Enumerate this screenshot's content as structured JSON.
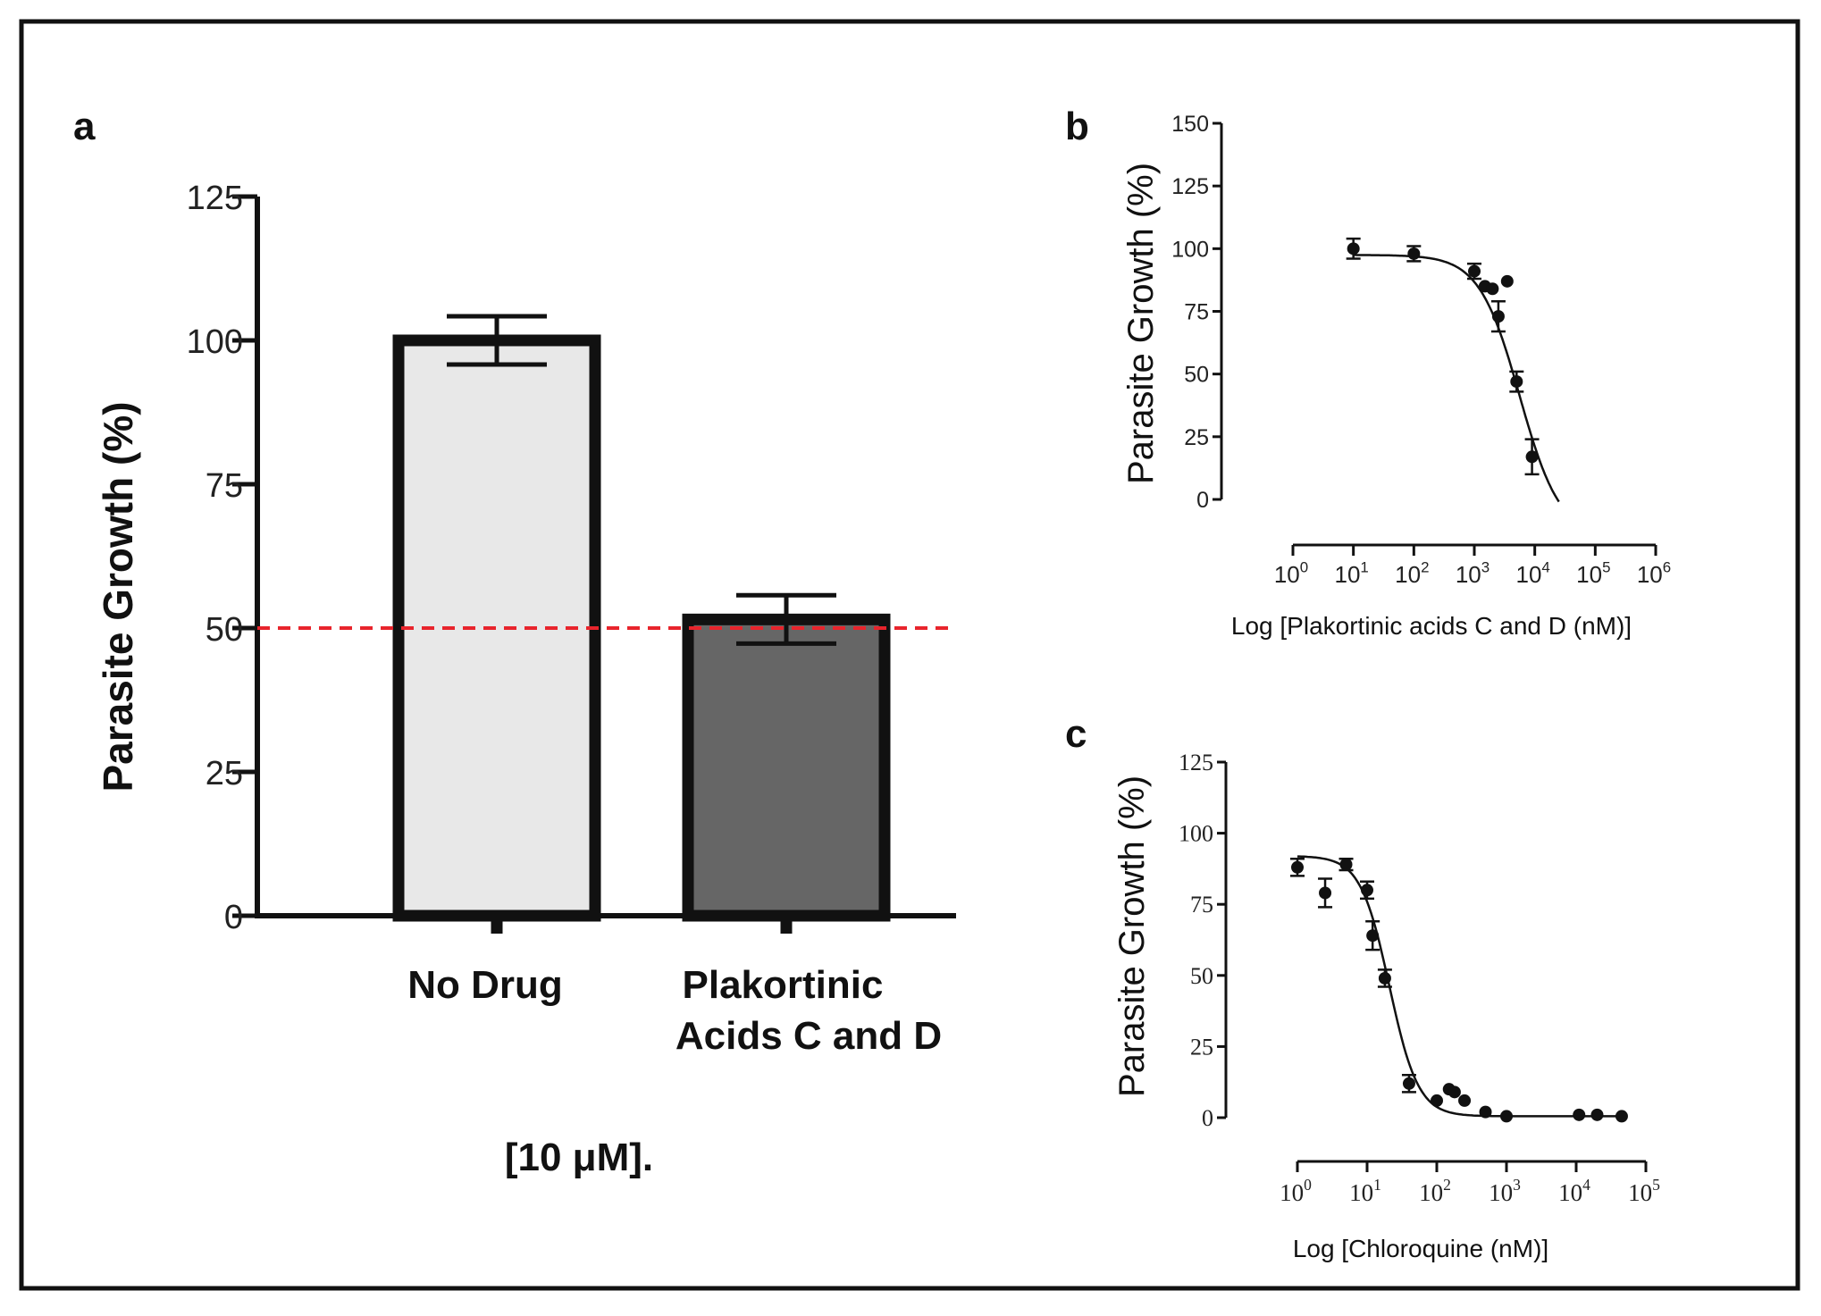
{
  "figure": {
    "panel_labels": [
      "a",
      "b",
      "c"
    ]
  },
  "colors": {
    "frame": "#111111",
    "bar_no_drug": "#e8e8e8",
    "bar_treated": "#666666",
    "threshold_line": "#e8242c",
    "ink": "#111111"
  },
  "chart_data": [
    {
      "panel": "a",
      "type": "bar",
      "title": "",
      "ylabel": "Parasite Growth (%)",
      "xlabel": "[10 μM].",
      "ylim": [
        0,
        125
      ],
      "yticks": [
        0,
        25,
        50,
        75,
        100,
        125
      ],
      "categories": [
        {
          "line1": "No Drug",
          "line2": ""
        },
        {
          "line1": "Plakortinic",
          "line2": "Acids C and D"
        }
      ],
      "values": [
        100,
        51.5
      ],
      "errors": [
        4.2,
        4.2
      ],
      "reference_line": {
        "y": 50,
        "style": "dashed"
      }
    },
    {
      "panel": "b",
      "type": "scatter",
      "subtype": "dose-response",
      "ylabel": "Parasite Growth (%)",
      "xlabel": "Log [Plakortinic acids C and D (nM)]",
      "xscale": "log",
      "xlim_exp": [
        0,
        6
      ],
      "xticks": [
        {
          "base": "10",
          "exp": "0"
        },
        {
          "base": "10",
          "exp": "1"
        },
        {
          "base": "10",
          "exp": "2"
        },
        {
          "base": "10",
          "exp": "3"
        },
        {
          "base": "10",
          "exp": "4"
        },
        {
          "base": "10",
          "exp": "5"
        },
        {
          "base": "10",
          "exp": "6"
        }
      ],
      "ylim": [
        0,
        150
      ],
      "yticks": [
        0,
        25,
        50,
        75,
        100,
        125,
        150
      ],
      "points": [
        {
          "x": 10,
          "y": 100,
          "err": 4
        },
        {
          "x": 100,
          "y": 98,
          "err": 3
        },
        {
          "x": 1000,
          "y": 91,
          "err": 3
        },
        {
          "x": 1500,
          "y": 85,
          "err": 0
        },
        {
          "x": 2000,
          "y": 84,
          "err": 0
        },
        {
          "x": 2500,
          "y": 73,
          "err": 6
        },
        {
          "x": 3500,
          "y": 87,
          "err": 0
        },
        {
          "x": 5000,
          "y": 47,
          "err": 4
        },
        {
          "x": 9000,
          "y": 17,
          "err": 7
        }
      ],
      "fit": {
        "top": 97.5,
        "bottom": -15,
        "log_ic50": 3.75,
        "hill": 1.3,
        "log_x_range": [
          1,
          4.4
        ]
      }
    },
    {
      "panel": "c",
      "type": "scatter",
      "subtype": "dose-response",
      "ylabel": "Parasite Growth (%)",
      "xlabel": "Log [Chloroquine (nM)]",
      "xscale": "log",
      "xlim_exp": [
        0,
        5
      ],
      "xticks": [
        {
          "base": "10",
          "exp": "0"
        },
        {
          "base": "10",
          "exp": "1"
        },
        {
          "base": "10",
          "exp": "2"
        },
        {
          "base": "10",
          "exp": "3"
        },
        {
          "base": "10",
          "exp": "4"
        },
        {
          "base": "10",
          "exp": "5"
        }
      ],
      "ylim": [
        0,
        125
      ],
      "yticks": [
        0,
        25,
        50,
        75,
        100,
        125
      ],
      "points": [
        {
          "x": 1,
          "y": 88,
          "err": 3
        },
        {
          "x": 2.5,
          "y": 79,
          "err": 5
        },
        {
          "x": 5,
          "y": 89,
          "err": 2
        },
        {
          "x": 10,
          "y": 80,
          "err": 3
        },
        {
          "x": 12,
          "y": 64,
          "err": 5
        },
        {
          "x": 18,
          "y": 49,
          "err": 3
        },
        {
          "x": 40,
          "y": 12,
          "err": 3
        },
        {
          "x": 100,
          "y": 6,
          "err": 0
        },
        {
          "x": 150,
          "y": 10,
          "err": 0
        },
        {
          "x": 180,
          "y": 9,
          "err": 0
        },
        {
          "x": 250,
          "y": 6,
          "err": 0
        },
        {
          "x": 500,
          "y": 2,
          "err": 0
        },
        {
          "x": 1000,
          "y": 0.5,
          "err": 0
        },
        {
          "x": 11000,
          "y": 1,
          "err": 0
        },
        {
          "x": 20000,
          "y": 1,
          "err": 0
        },
        {
          "x": 45000,
          "y": 0.5,
          "err": 0
        }
      ],
      "fit": {
        "top": 92,
        "bottom": 0.5,
        "log_ic50": 1.32,
        "hill": 2.1,
        "log_x_range": [
          0,
          4.7
        ]
      }
    }
  ]
}
